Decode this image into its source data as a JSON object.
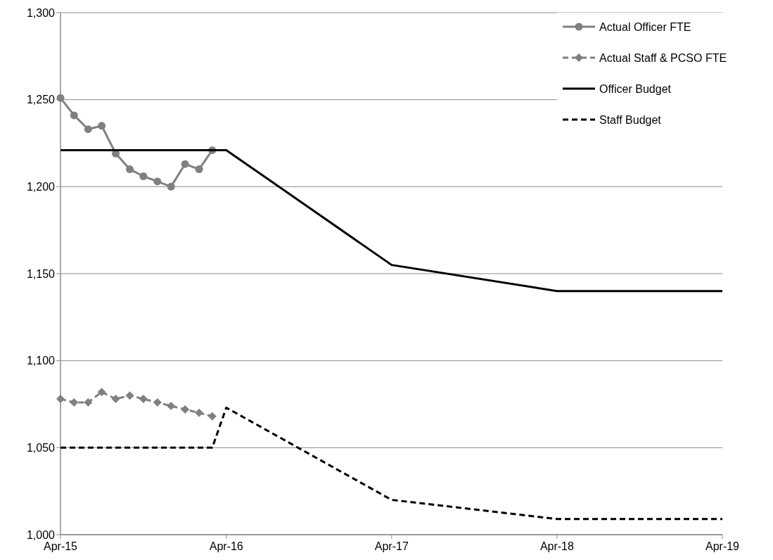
{
  "chart_data": {
    "type": "line",
    "xlim": [
      "2015-04",
      "2019-04"
    ],
    "ylim": [
      1000,
      1300
    ],
    "xticks": [
      {
        "value": "2015-04",
        "label": "Apr-15"
      },
      {
        "value": "2016-04",
        "label": "Apr-16"
      },
      {
        "value": "2017-04",
        "label": "Apr-17"
      },
      {
        "value": "2018-04",
        "label": "Apr-18"
      },
      {
        "value": "2019-04",
        "label": "Apr-19"
      }
    ],
    "yticks": [
      {
        "value": 1000,
        "label": "1,000"
      },
      {
        "value": 1050,
        "label": "1,050"
      },
      {
        "value": 1100,
        "label": "1,100"
      },
      {
        "value": 1150,
        "label": "1,150"
      },
      {
        "value": 1200,
        "label": "1,200"
      },
      {
        "value": 1250,
        "label": "1,250"
      },
      {
        "value": 1300,
        "label": "1,300"
      }
    ],
    "grid": "y",
    "legend": "top right",
    "series": [
      {
        "name": "Actual Officer FTE",
        "color": "#808080",
        "marker": "circle",
        "line_style": "solid",
        "x": [
          "2015-04",
          "2015-05",
          "2015-06",
          "2015-07",
          "2015-08",
          "2015-09",
          "2015-10",
          "2015-11",
          "2015-12",
          "2016-01",
          "2016-02",
          "2016-03"
        ],
        "values": [
          1251,
          1241,
          1233,
          1235,
          1219,
          1210,
          1206,
          1203,
          1200,
          1213,
          1210,
          1221
        ]
      },
      {
        "name": "Actual Staff & PCSO FTE",
        "color": "#808080",
        "marker": "diamond",
        "line_style": "dashed",
        "x": [
          "2015-04",
          "2015-05",
          "2015-06",
          "2015-07",
          "2015-08",
          "2015-09",
          "2015-10",
          "2015-11",
          "2015-12",
          "2016-01",
          "2016-02",
          "2016-03"
        ],
        "values": [
          1078,
          1076,
          1076,
          1082,
          1078,
          1080,
          1078,
          1076,
          1074,
          1072,
          1070,
          1068
        ]
      },
      {
        "name": "Officer Budget",
        "color": "#000000",
        "line_style": "solid",
        "x": [
          "2015-04",
          "2016-04",
          "2017-04",
          "2018-04",
          "2019-04"
        ],
        "values": [
          1221,
          1221,
          1155,
          1140,
          1140
        ]
      },
      {
        "name": "Staff Budget",
        "color": "#000000",
        "line_style": "dashed",
        "x": [
          "2015-04",
          "2016-03",
          "2016-04",
          "2017-04",
          "2018-04",
          "2019-04"
        ],
        "values": [
          1050,
          1050,
          1073,
          1020,
          1009,
          1009
        ]
      }
    ]
  }
}
